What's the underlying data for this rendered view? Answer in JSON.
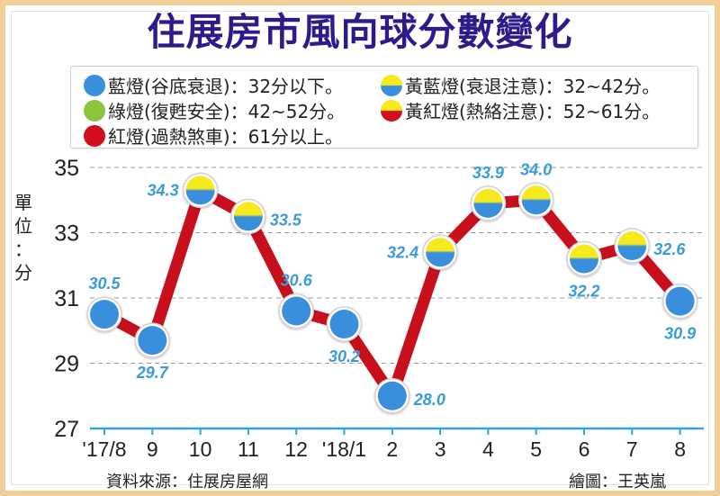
{
  "title": "住展房市風向球分數變化",
  "legend": {
    "items": [
      {
        "label": "藍燈(谷底衰退)：32分以下。",
        "swatch": "blue",
        "colors": [
          "#3a8fdc"
        ]
      },
      {
        "label": "綠燈(復甦安全)：42~52分。",
        "swatch": "green",
        "colors": [
          "#8cc43c"
        ]
      },
      {
        "label": "紅燈(過熱煞車)：61分以上。",
        "swatch": "red",
        "colors": [
          "#d0101e"
        ]
      },
      {
        "label": "黃藍燈(衰退注意)：32~42分。",
        "swatch": "yellow-blue",
        "colors": [
          "#f7ea1c",
          "#3a8fdc"
        ]
      },
      {
        "label": "黃紅燈(熱絡注意)：52~61分。",
        "swatch": "yellow-red",
        "colors": [
          "#f7ea1c",
          "#d0101e"
        ]
      }
    ]
  },
  "ylabel_chars": [
    "單",
    "位",
    "：",
    "分"
  ],
  "source": "資料來源：住展房屋網",
  "credit": "繪圖：王英嵐",
  "colors": {
    "title": "#2e1a8a",
    "line": "#c8101c",
    "label": "#3a9bd8",
    "blue": "#3a8fdc",
    "yellow": "#f7ea1c",
    "axis": "#3aa0dc",
    "frame": "#f2cf98"
  },
  "chart_data": {
    "type": "line",
    "title": "住展房市風向球分數變化",
    "xlabel": "",
    "ylabel": "單位：分",
    "categories": [
      "'17/8",
      "9",
      "10",
      "11",
      "12",
      "'18/1",
      "2",
      "3",
      "4",
      "5",
      "6",
      "7",
      "8"
    ],
    "values": [
      30.5,
      29.7,
      34.3,
      33.5,
      30.6,
      30.2,
      28.0,
      32.4,
      33.9,
      34.0,
      32.2,
      32.6,
      30.9
    ],
    "value_labels": [
      "30.5",
      "29.7",
      "34.3",
      "33.5",
      "30.6",
      "30.2",
      "28.0",
      "32.4",
      "33.9",
      "34.0",
      "32.2",
      "32.6",
      "30.9"
    ],
    "marker_types": [
      "blue",
      "blue",
      "yellow-blue",
      "yellow-blue",
      "blue",
      "blue",
      "blue",
      "yellow-blue",
      "yellow-blue",
      "yellow-blue",
      "yellow-blue",
      "yellow-blue",
      "blue"
    ],
    "label_positions": [
      "above",
      "below",
      "left",
      "right",
      "above",
      "below",
      "right",
      "left",
      "above",
      "above",
      "below",
      "right",
      "below"
    ],
    "yticks": [
      27,
      29,
      31,
      33,
      35
    ],
    "ylim": [
      27,
      35
    ],
    "grid": true,
    "legend_position": "top"
  }
}
